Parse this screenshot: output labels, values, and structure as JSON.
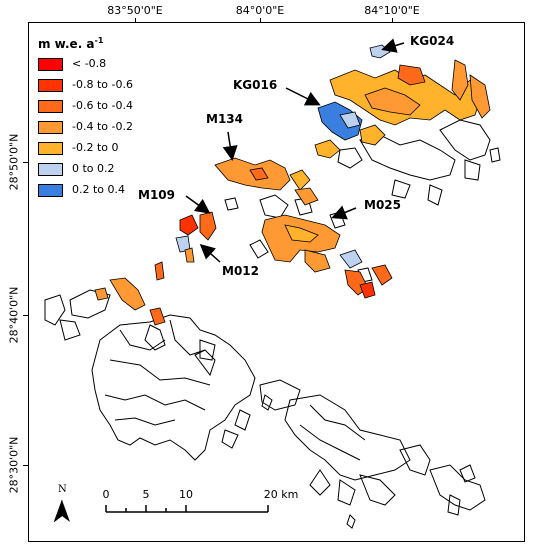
{
  "map": {
    "top_coords": [
      "83°50'0\"E",
      "84°0'0\"E",
      "84°10'0\"E"
    ],
    "left_coords": [
      "28°50'0\"N",
      "28°40'0\"N",
      "28°30'0\"N"
    ]
  },
  "legend": {
    "title": "m w.e. a",
    "title_sup": "-1",
    "items": [
      {
        "label": "< -0.8",
        "color": "#ff0000"
      },
      {
        "label": "-0.8 to -0.6",
        "color": "#ff3300"
      },
      {
        "label": "-0.6 to -0.4",
        "color": "#ff6a1a"
      },
      {
        "label": "-0.4 to -0.2",
        "color": "#ff9933"
      },
      {
        "label": "-0.2 to 0",
        "color": "#ffb22c"
      },
      {
        "label": "0 to 0.2",
        "color": "#bcd2ee"
      },
      {
        "label": "0.2 to 0.4",
        "color": "#3a7ee0"
      }
    ]
  },
  "glaciers": {
    "kg024": "KG024",
    "kg016": "KG016",
    "m134": "M134",
    "m109": "M109",
    "m025": "M025",
    "m012": "M012"
  },
  "scale_bar": {
    "ticks": [
      "0",
      "5",
      "10",
      "20 km"
    ]
  },
  "north_arrow": {
    "label": "N"
  }
}
